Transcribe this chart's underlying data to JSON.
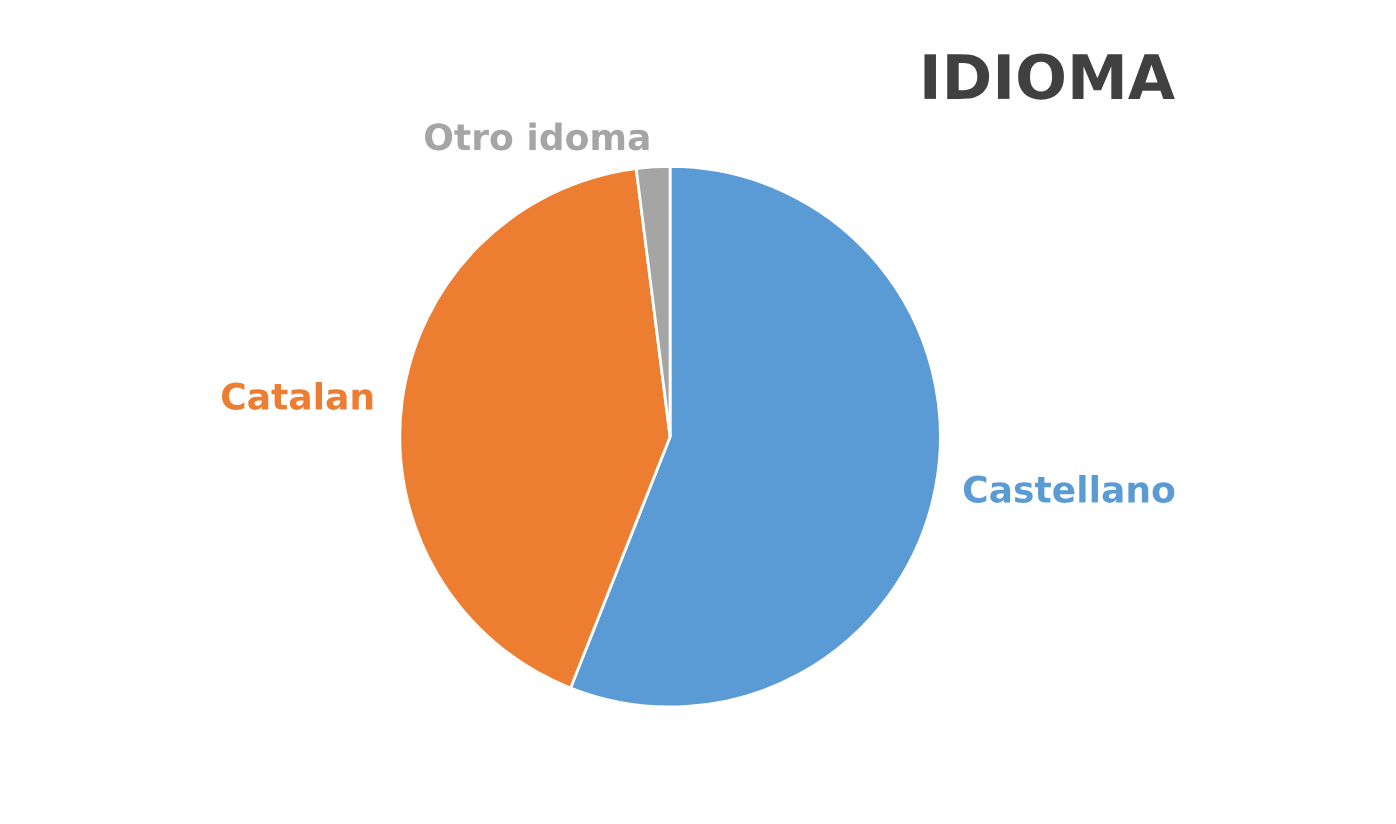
{
  "chart_data": {
    "type": "pie",
    "title": "IDIOMA",
    "categories": [
      "Castellano",
      "Catalan",
      "Otro idoma"
    ],
    "values": [
      56,
      42,
      2
    ],
    "colors": [
      "#5b9bd5",
      "#ed7d31",
      "#a5a5a5"
    ]
  }
}
